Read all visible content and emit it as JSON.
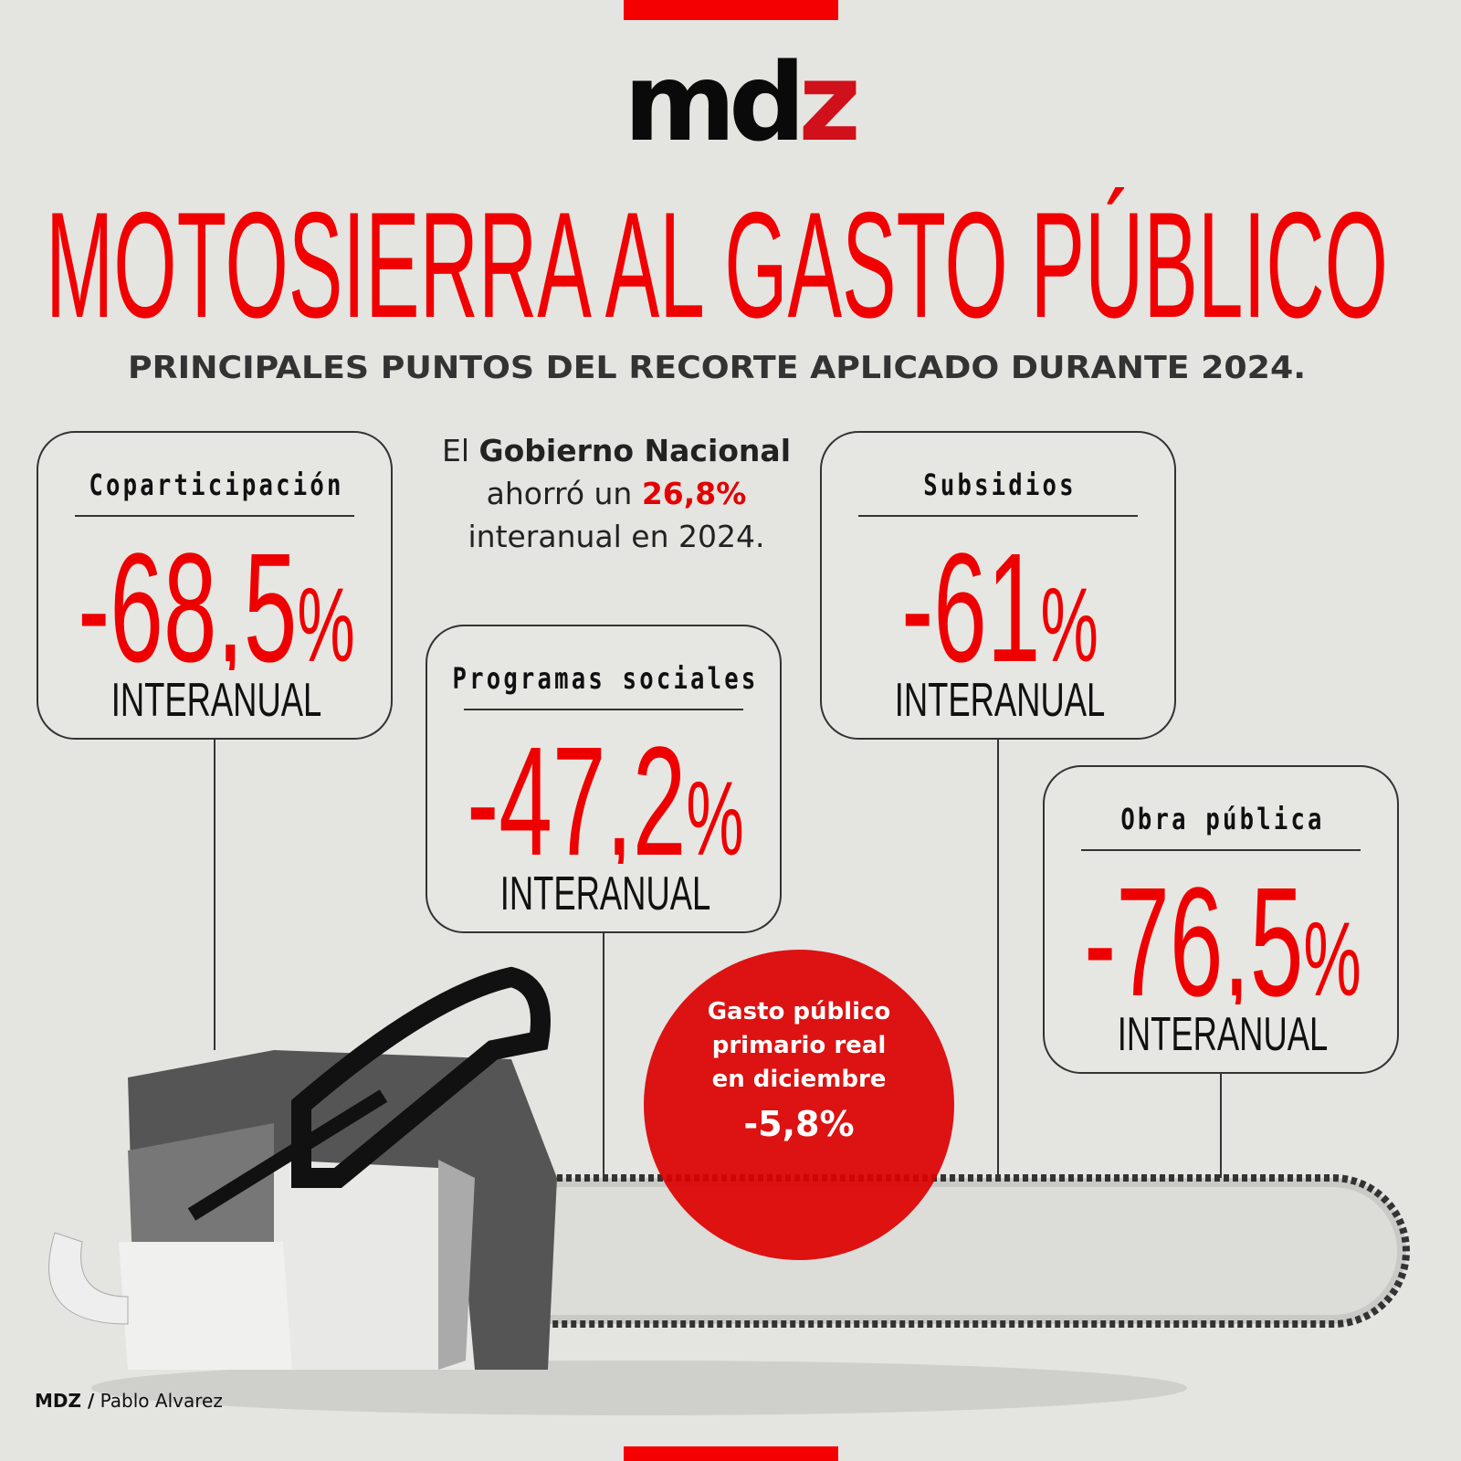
{
  "brand": {
    "logo_text": "mdz",
    "accent": "#f00000"
  },
  "title": "MOTOSIERRA AL GASTO PÚBLICO",
  "subtitle": "PRINCIPALES PUNTOS DEL RECORTE APLICADO DURANTE 2024.",
  "summary": {
    "p1": "El ",
    "b1": "Gobierno Nacional",
    "p2": " ahorró un ",
    "highlight": "26,8%",
    "p3": " interanual en 2024."
  },
  "cards": [
    {
      "label": "Coparticipación",
      "value": "-68,5",
      "unit": "%",
      "sub": "INTERANUAL"
    },
    {
      "label": "Programas sociales",
      "value": "-47,2",
      "unit": "%",
      "sub": "INTERANUAL"
    },
    {
      "label": "Subsidios",
      "value": "-61",
      "unit": "%",
      "sub": "INTERANUAL"
    },
    {
      "label": "Obra pública",
      "value": "-76,5",
      "unit": "%",
      "sub": "INTERANUAL"
    }
  ],
  "circle": {
    "text": "Gasto público primario real en diciembre",
    "value": "-5,8%"
  },
  "footer": {
    "brand": "MDZ /",
    "author": "Pablo Alvarez"
  }
}
